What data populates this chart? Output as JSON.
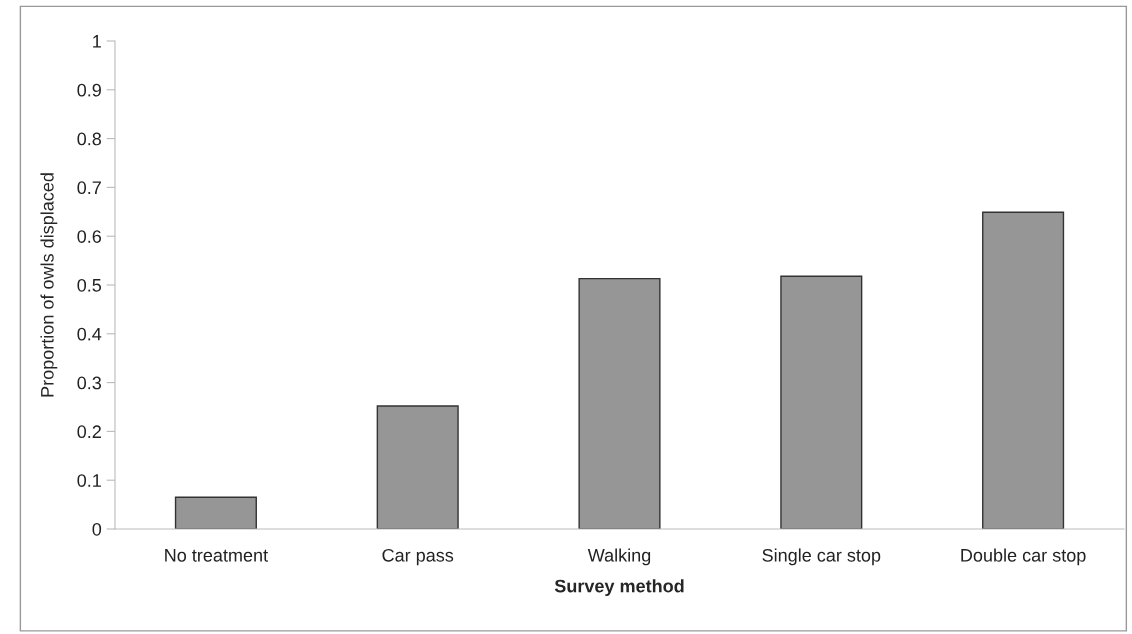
{
  "chart_data": {
    "type": "bar",
    "xlabel": "Survey method",
    "ylabel": "Proportion of owls displaced",
    "categories": [
      "No treatment",
      "Car pass",
      "Walking",
      "Single car stop",
      "Double car stop"
    ],
    "values": [
      0.065,
      0.252,
      0.513,
      0.518,
      0.649
    ],
    "color": "#969696",
    "ylim": [
      0,
      1
    ],
    "yticks": [
      0,
      0.1,
      0.2,
      0.3,
      0.4,
      0.5,
      0.6,
      0.7,
      0.8,
      0.9,
      1
    ],
    "grid": false
  }
}
